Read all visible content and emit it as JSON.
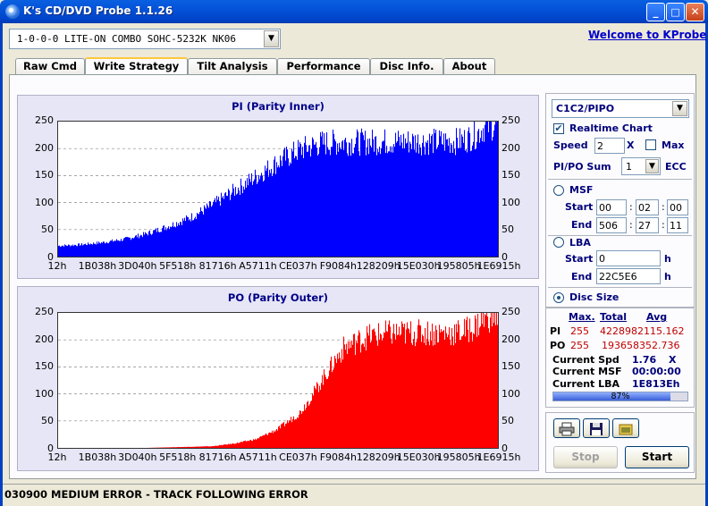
{
  "window": {
    "title": "K's CD/DVD Probe 1.1.26",
    "min": "_",
    "max": "□",
    "close": "✕"
  },
  "drive": {
    "selected": "1-0-0-0 LITE-ON COMBO SOHC-5232K NK06"
  },
  "welcome": "Welcome to KProbe",
  "tabs": [
    "Raw Cmd",
    "Write Strategy",
    "Tilt Analysis",
    "Performance",
    "Disc Info.",
    "About"
  ],
  "active_tab": "Write Strategy",
  "chart_data": [
    {
      "type": "bar",
      "title": "PI (Parity Inner)",
      "color": "#0000ff",
      "ylim": [
        0,
        250
      ],
      "yticks": [
        "250",
        "200",
        "150",
        "100",
        "50",
        "0"
      ],
      "xticks": [
        "12h",
        "1B038h",
        "3D040h",
        "5F518h",
        "81716h",
        "A5711h",
        "CE037h",
        "F9084h",
        "128209h",
        "15E030h",
        "195805h",
        "1E6915h"
      ],
      "x": [
        0,
        5,
        10,
        15,
        20,
        25,
        30,
        35,
        40,
        45,
        50,
        55,
        60,
        65,
        70,
        75,
        80,
        85,
        90,
        92,
        95,
        97,
        100
      ],
      "values": [
        20,
        22,
        26,
        32,
        42,
        56,
        72,
        95,
        122,
        148,
        175,
        198,
        210,
        212,
        212,
        213,
        213,
        213,
        213,
        215,
        225,
        240,
        245
      ]
    },
    {
      "type": "bar",
      "title": "PO (Parity Outer)",
      "color": "#ff0000",
      "ylim": [
        0,
        250
      ],
      "yticks": [
        "250",
        "200",
        "150",
        "100",
        "50",
        "0"
      ],
      "xticks": [
        "12h",
        "1B038h",
        "3D040h",
        "5F518h",
        "81716h",
        "A5711h",
        "CE037h",
        "F9084h",
        "128209h",
        "15E030h",
        "195805h",
        "1E6915h"
      ],
      "x": [
        0,
        20,
        35,
        40,
        45,
        50,
        55,
        58,
        62,
        65,
        70,
        75,
        80,
        85,
        90,
        92,
        95,
        97,
        100
      ],
      "values": [
        0,
        0,
        3,
        8,
        16,
        35,
        65,
        100,
        150,
        185,
        205,
        212,
        213,
        213,
        213,
        215,
        225,
        240,
        245
      ]
    }
  ],
  "side": {
    "mode": "C1C2/PIPO",
    "realtime_label": "Realtime Chart",
    "realtime_checked": "✔",
    "speed_label": "Speed",
    "speed_value": "2",
    "speed_x": "X",
    "max_label": "Max",
    "sum_label": "PI/PO Sum",
    "sum_value": "1",
    "ecc_label": "ECC",
    "msf_label": "MSF",
    "start_label": "Start",
    "end_label": "End",
    "msf_start": [
      "00",
      "02",
      "00"
    ],
    "msf_end": [
      "506",
      "27",
      "11"
    ],
    "colon": ":",
    "lba_label": "LBA",
    "lba_start": "0",
    "lba_end": "22C5E6",
    "h": "h",
    "disc_size_label": "Disc Size"
  },
  "stats": {
    "hdr_max": "Max.",
    "hdr_total": "Total",
    "hdr_avg": "Avg",
    "pi_label": "PI",
    "pi_max": "255",
    "pi_total_avg": "4228982115.162",
    "po_label": "PO",
    "po_max": "255",
    "po_total_avg": "193658352.736",
    "spd_label": "Current Spd",
    "spd_value": "1.76",
    "spd_x": "X",
    "msf_label": "Current MSF",
    "msf_value": "00:00:00",
    "lba_label": "Current LBA",
    "lba_value": "1E813Eh",
    "progress": 87,
    "progress_label": "87%"
  },
  "buttons": {
    "stop": "Stop",
    "start": "Start"
  },
  "status": "030900 MEDIUM ERROR - TRACK FOLLOWING ERROR"
}
